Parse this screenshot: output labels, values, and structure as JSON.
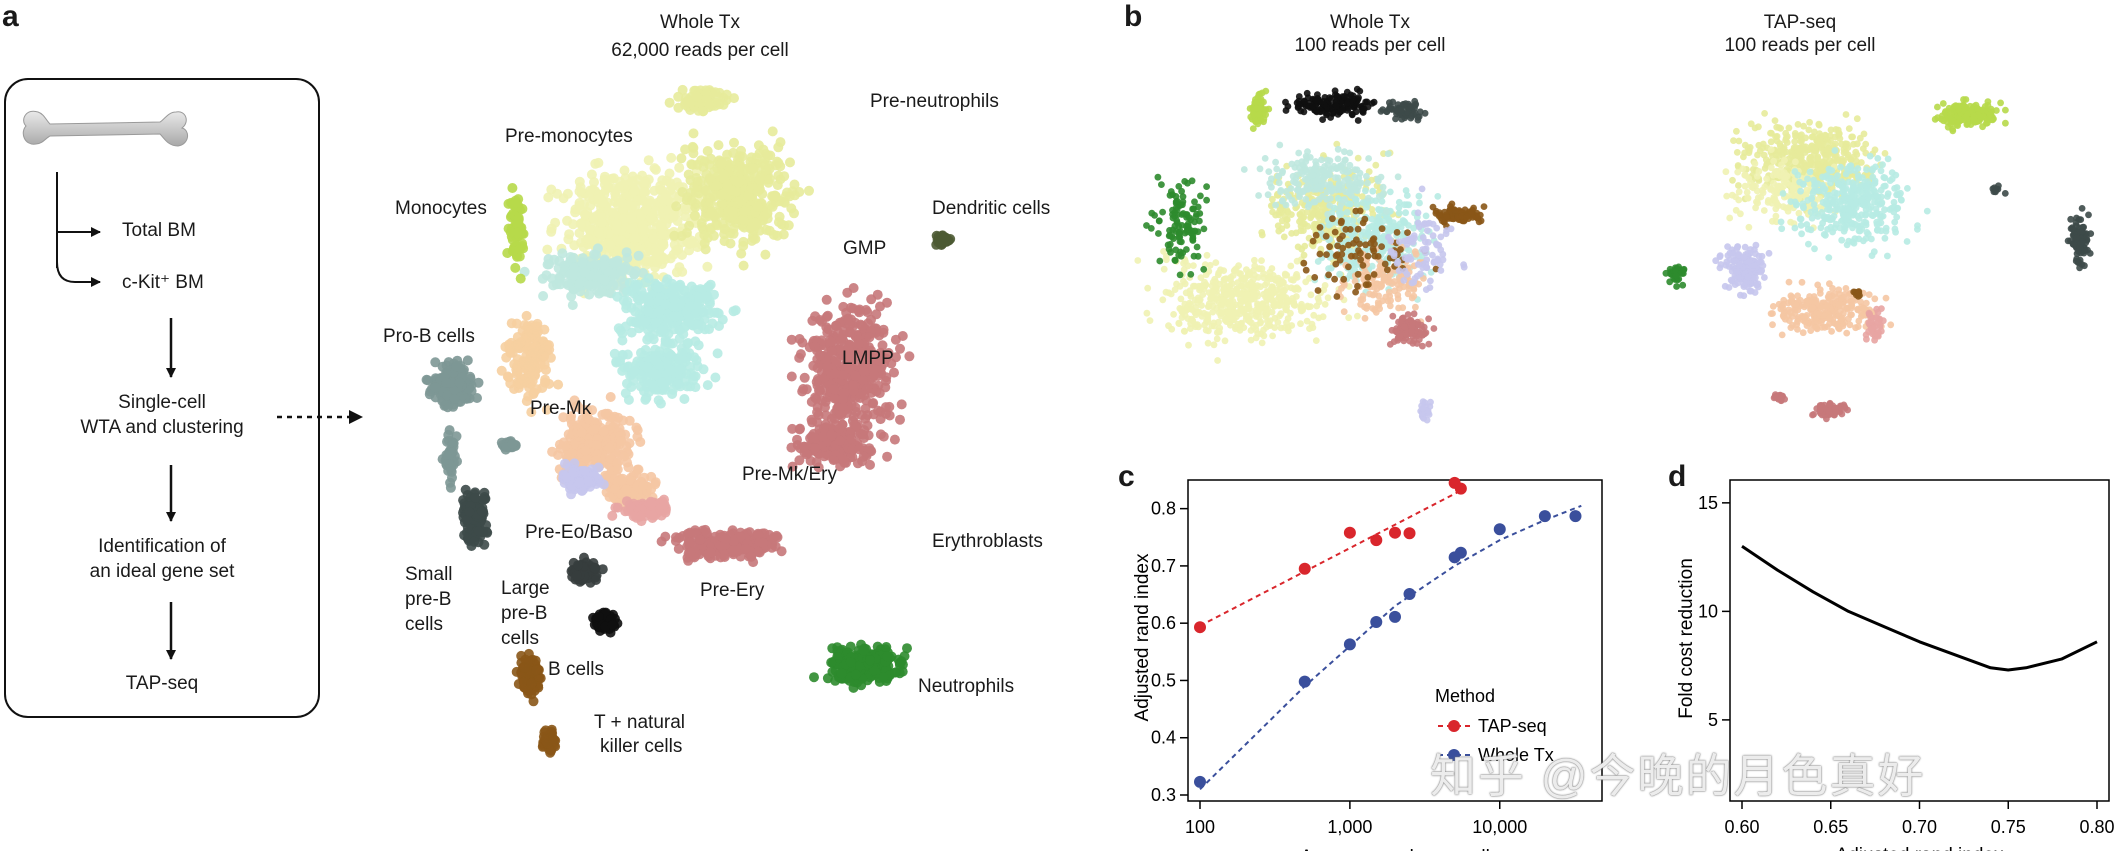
{
  "panels": {
    "a": "a",
    "b": "b",
    "c": "c",
    "d": "d"
  },
  "flow": {
    "total_bm": "Total BM",
    "ckit_bm": "c-Kit⁺ BM",
    "single_cell": "Single-cell",
    "wta": "WTA and clustering",
    "ident1": "Identification of",
    "ident2": "an ideal gene set",
    "tapseq": "TAP-seq"
  },
  "main_umap": {
    "title1": "Whole Tx",
    "title2": "62,000 reads per cell",
    "clusters": [
      {
        "name": "Pre-neutrophils",
        "color": "#e7eb9b"
      },
      {
        "name": "Pre-monocytes",
        "color": "#eff2b2"
      },
      {
        "name": "Monocytes",
        "color": "#b7d94a"
      },
      {
        "name": "Dendritic cells",
        "color": "#4d5a33"
      },
      {
        "name": "GMP",
        "color": "#bfe8df"
      },
      {
        "name": "LMPP",
        "color": "#b7ebe3"
      },
      {
        "name": "Pro-B  cells",
        "color": "#7d9795"
      },
      {
        "name": "Pre-Mk",
        "color": "#f6cfa0"
      },
      {
        "name": "Pre-Mk/Ery",
        "color": "#f5c6a3"
      },
      {
        "name": "Pre-Eo/Baso",
        "color": "#c6c6ed"
      },
      {
        "name": "Erythroblasts",
        "color": "#c7787a"
      },
      {
        "name": "Small pre-B cells",
        "color": "#3d4a49"
      },
      {
        "name": "Large pre-B cells",
        "color": "#363d3d"
      },
      {
        "name": "B cells",
        "color": "#0f0f0f"
      },
      {
        "name": "Pre-Ery",
        "color": "#e8a5a3"
      },
      {
        "name": "T + natural killer cells",
        "color": "#8a5617"
      },
      {
        "name": "Neutrophils",
        "color": "#2e8b2e"
      }
    ],
    "labels": {
      "pre_neutrophils": "Pre-neutrophils",
      "pre_monocytes": "Pre-monocytes",
      "monocytes": "Monocytes",
      "dendritic": "Dendritic cells",
      "gmp": "GMP",
      "lmpp": "LMPP",
      "prob": "Pro-B  cells",
      "premk": "Pre-Mk",
      "premkery": "Pre-Mk/Ery",
      "preeo": "Pre-Eo/Baso",
      "erythro": "Erythroblasts",
      "small1": "Small",
      "small2": "pre-B",
      "small3": "cells",
      "large1": "Large",
      "large2": "pre-B",
      "large3": "cells",
      "bcells": "B cells",
      "preery": "Pre-Ery",
      "tnk1": "T + natural",
      "tnk2": "killer cells",
      "neutro": "Neutrophils"
    }
  },
  "panel_b": {
    "left_title1": "Whole Tx",
    "left_title2": "100 reads per cell",
    "right_title1": "TAP-seq",
    "right_title2": "100 reads per cell"
  },
  "chart_data": [
    {
      "type": "scatter",
      "panel": "c",
      "xlabel": "Average reads per cell",
      "ylabel": "Adjusted rand index",
      "xscale": "log",
      "xlim": [
        100,
        40000
      ],
      "ylim": [
        0.3,
        0.85
      ],
      "xticks": [
        100,
        1000,
        10000
      ],
      "xtick_labels": [
        "100",
        "1,000",
        "10,000"
      ],
      "yticks": [
        0.3,
        0.4,
        0.5,
        0.6,
        0.7,
        0.8
      ],
      "ytick_labels": [
        "0.3",
        "0.4",
        "0.5",
        "0.6",
        "0.7",
        "0.8"
      ],
      "legend_title": "Method",
      "legend_position": "bottom-right",
      "series": [
        {
          "name": "TAP-seq",
          "color": "#d9262c",
          "x": [
            100,
            500,
            1000,
            1500,
            2000,
            2500,
            5000,
            5500
          ],
          "y": [
            0.593,
            0.695,
            0.758,
            0.745,
            0.758,
            0.757,
            0.845,
            0.835
          ]
        },
        {
          "name": "Whole Tx",
          "color": "#3a4f9c",
          "x": [
            100,
            500,
            1000,
            1500,
            2000,
            2500,
            5000,
            5500,
            10000,
            20000,
            32000
          ],
          "y": [
            0.323,
            0.498,
            0.563,
            0.602,
            0.611,
            0.651,
            0.715,
            0.723,
            0.764,
            0.787,
            0.787
          ]
        }
      ]
    },
    {
      "type": "line",
      "panel": "d",
      "xlabel": "Adjusted rand index",
      "ylabel": "Fold cost reduction",
      "xlim": [
        0.6,
        0.8
      ],
      "ylim": [
        2,
        15.5
      ],
      "xticks": [
        0.6,
        0.65,
        0.7,
        0.75,
        0.8
      ],
      "xtick_labels": [
        "0.60",
        "0.65",
        "0.70",
        "0.75",
        "0.80"
      ],
      "yticks": [
        5,
        10,
        15
      ],
      "ytick_labels": [
        "5",
        "10",
        "15"
      ],
      "series": [
        {
          "color": "#000000",
          "x": [
            0.6,
            0.62,
            0.64,
            0.66,
            0.68,
            0.7,
            0.72,
            0.74,
            0.75,
            0.76,
            0.78,
            0.8
          ],
          "y": [
            13.0,
            11.9,
            10.9,
            10.0,
            9.3,
            8.6,
            8.0,
            7.4,
            7.3,
            7.4,
            7.8,
            8.6
          ]
        }
      ]
    }
  ],
  "watermark": "知乎 @今晚的月色真好"
}
